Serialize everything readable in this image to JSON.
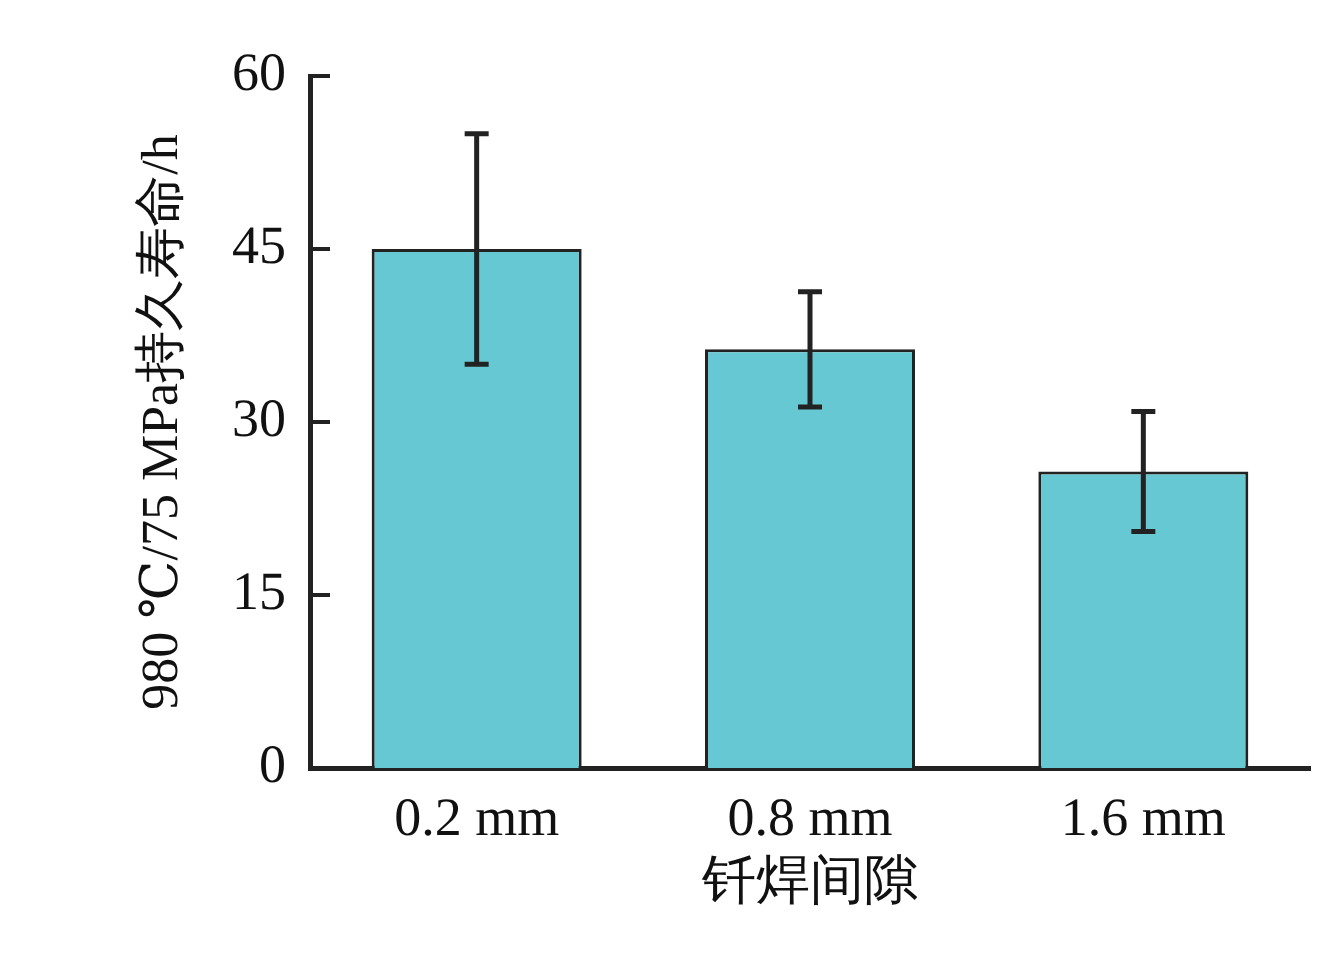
{
  "chart_data": {
    "type": "bar",
    "xlabel": "钎焊间隙",
    "ylabel": "980 ℃/75 MPa持久寿命/h",
    "categories": [
      "0.2 mm",
      "0.8 mm",
      "1.6 mm"
    ],
    "values": [
      45,
      36.3,
      25.7
    ],
    "errors": [
      10,
      5,
      5.2
    ],
    "color": "#66c8d3",
    "ylim": [
      0,
      60
    ],
    "yticks": [
      0,
      15,
      30,
      45,
      60
    ],
    "grid": false,
    "legend": false
  }
}
